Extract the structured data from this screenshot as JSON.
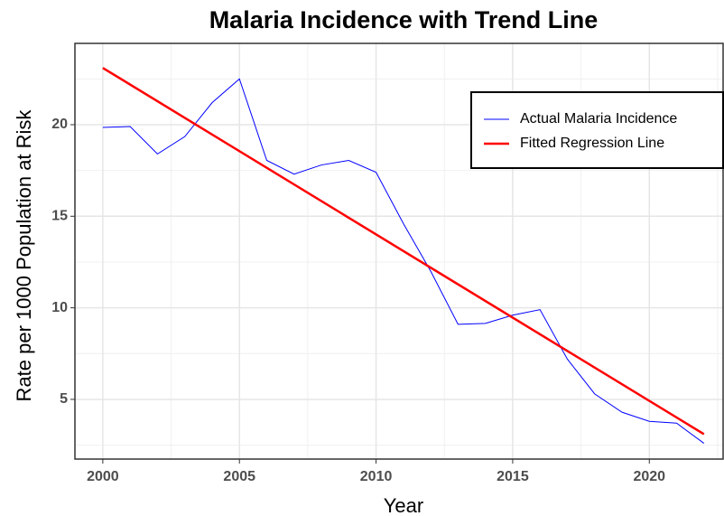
{
  "chart_data": {
    "type": "line",
    "title": "Malaria Incidence with Trend Line",
    "x_label": "Year",
    "y_label": "Rate per 1000 Population at Risk",
    "x": [
      2000,
      2001,
      2002,
      2003,
      2004,
      2005,
      2006,
      2007,
      2008,
      2009,
      2010,
      2011,
      2012,
      2013,
      2014,
      2015,
      2016,
      2017,
      2018,
      2019,
      2020,
      2021,
      2022
    ],
    "series": [
      {
        "name": "Actual Malaria Incidence",
        "color": "#0000ff",
        "width": 1,
        "values": [
          19.85,
          19.9,
          18.4,
          19.35,
          21.2,
          22.5,
          18.05,
          17.3,
          17.8,
          18.05,
          17.4,
          14.6,
          12.0,
          9.1,
          9.15,
          9.6,
          9.9,
          7.2,
          5.3,
          4.3,
          3.8,
          3.7,
          2.6
        ]
      },
      {
        "name": "Fitted Regression Line",
        "color": "#ff0000",
        "width": 2.5,
        "x": [
          2000,
          2022
        ],
        "values": [
          23.1,
          3.1
        ]
      }
    ],
    "xlim": [
      1998.98,
      2022.7
    ],
    "xticks": [
      2000,
      2005,
      2010,
      2015,
      2020
    ],
    "ylim": [
      1.74,
      24.44
    ],
    "yticks": [
      5,
      10,
      15,
      20
    ],
    "grid": true,
    "minor_grid": true,
    "legend": "top-right"
  }
}
